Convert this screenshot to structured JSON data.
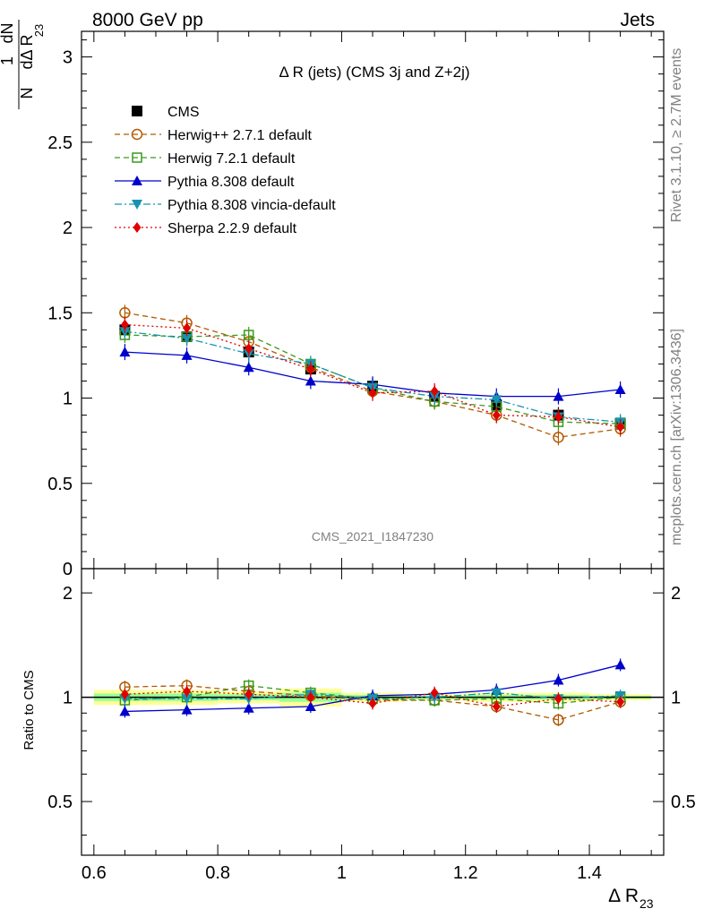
{
  "header": {
    "left": "8000 GeV pp",
    "right": "Jets"
  },
  "side": {
    "rivet": "Rivet 3.1.10, ≥ 2.7M events",
    "mcplots": "mcplots.cern.ch [arXiv:1306.3436]"
  },
  "chart_data": [
    {
      "type": "line",
      "title": "Δ R (jets) (CMS 3j and Z+2j)",
      "watermark": "CMS_2021_I1847230",
      "ylabel": {
        "pre": "1",
        "dn": "dN",
        "n": "N",
        "dr": "dΔ R",
        "sub": "23"
      },
      "xlim": [
        0.58,
        1.52
      ],
      "ylim": [
        0,
        3.15
      ],
      "yticks": [
        "0",
        "0.5",
        "1",
        "1.5",
        "2",
        "2.5",
        "3"
      ],
      "x": [
        0.65,
        0.75,
        0.85,
        0.95,
        1.05,
        1.15,
        1.25,
        1.35,
        1.45
      ],
      "legend_position": "top-left",
      "series": [
        {
          "name": "CMS",
          "marker": "square",
          "color": "#000000",
          "line": "none",
          "values": [
            1.4,
            1.36,
            1.27,
            1.17,
            1.07,
            1.01,
            0.96,
            0.9,
            0.85
          ]
        },
        {
          "name": "Herwig++ 2.7.1 default",
          "marker": "circle-open",
          "color": "#b35900",
          "line": "dashed",
          "values": [
            1.5,
            1.44,
            1.33,
            1.18,
            1.04,
            0.98,
            0.9,
            0.77,
            0.82
          ]
        },
        {
          "name": "Herwig 7.2.1 default",
          "marker": "square-open",
          "color": "#3a9a1a",
          "line": "dashed",
          "values": [
            1.37,
            1.36,
            1.37,
            1.2,
            1.06,
            0.98,
            0.95,
            0.86,
            0.85
          ]
        },
        {
          "name": "Pythia 8.308 default",
          "marker": "triangle-up",
          "color": "#0000cc",
          "line": "solid",
          "values": [
            1.27,
            1.25,
            1.18,
            1.1,
            1.08,
            1.03,
            1.01,
            1.01,
            1.05
          ]
        },
        {
          "name": "Pythia 8.308 vincia-default",
          "marker": "triangle-down",
          "color": "#1793b0",
          "line": "dashdot",
          "values": [
            1.39,
            1.35,
            1.26,
            1.2,
            1.06,
            1.01,
            0.99,
            0.89,
            0.86
          ]
        },
        {
          "name": "Sherpa 2.2.9 default",
          "marker": "diamond",
          "color": "#e00000",
          "line": "dotted",
          "values": [
            1.43,
            1.41,
            1.29,
            1.17,
            1.03,
            1.04,
            0.9,
            0.89,
            0.83
          ]
        }
      ]
    },
    {
      "type": "line",
      "ylabel": "Ratio to CMS",
      "xlabel": {
        "main": "Δ R",
        "sub": "23"
      },
      "xlim": [
        0.58,
        1.52
      ],
      "ylim": [
        0.35,
        2.35
      ],
      "xticks": [
        "0.6",
        "0.8",
        "1",
        "1.2",
        "1.4"
      ],
      "yticks": [
        "0.5",
        "1",
        "2"
      ],
      "x": [
        0.65,
        0.75,
        0.85,
        0.95,
        1.05,
        1.15,
        1.25,
        1.35,
        1.45
      ],
      "band_stat_yellow": [
        0.95,
        0.95,
        0.96,
        0.94,
        0.97,
        0.98,
        0.97,
        0.97,
        0.98
      ],
      "band_stat_yellow_hi": [
        1.05,
        1.05,
        1.04,
        1.06,
        1.03,
        1.02,
        1.03,
        1.03,
        1.02
      ],
      "series": [
        {
          "name": "Herwig++ 2.7.1 default",
          "values": [
            1.07,
            1.08,
            1.04,
            1.01,
            0.98,
            0.98,
            0.94,
            0.86,
            0.97
          ]
        },
        {
          "name": "Herwig 7.2.1 default",
          "values": [
            0.98,
            1.0,
            1.08,
            1.03,
            0.99,
            0.98,
            0.99,
            0.96,
            1.0
          ]
        },
        {
          "name": "Pythia 8.308 default",
          "values": [
            0.91,
            0.92,
            0.93,
            0.94,
            1.01,
            1.02,
            1.05,
            1.12,
            1.24
          ]
        },
        {
          "name": "Pythia 8.308 vincia-default",
          "values": [
            0.99,
            0.99,
            0.99,
            1.02,
            0.99,
            1.0,
            1.03,
            0.99,
            1.01
          ]
        },
        {
          "name": "Sherpa 2.2.9 default",
          "values": [
            1.02,
            1.04,
            1.02,
            1.0,
            0.96,
            1.03,
            0.94,
            0.99,
            0.97
          ]
        }
      ]
    }
  ]
}
